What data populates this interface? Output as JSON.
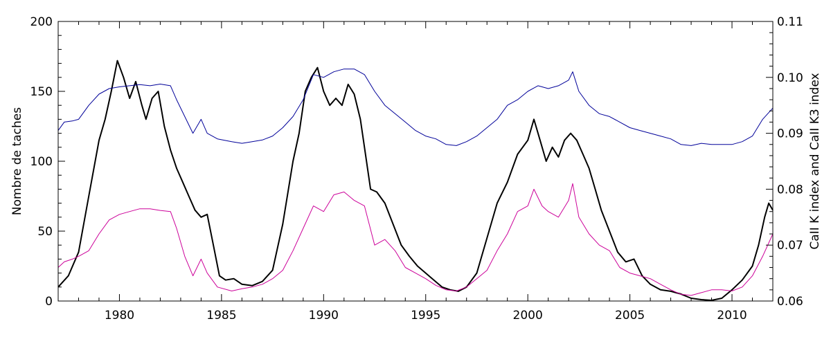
{
  "chart_data": {
    "type": "line",
    "title": "",
    "xlabel": "",
    "ylabel_left": "Nombre de taches",
    "ylabel_right": "CaII K index and CaII K3 index",
    "xlim": [
      1977.0,
      2012.0
    ],
    "ylim_left": [
      0,
      200
    ],
    "ylim_right": [
      0.06,
      0.11
    ],
    "x_ticks": [
      1980,
      1985,
      1990,
      1995,
      2000,
      2005,
      2010
    ],
    "y_left_ticks": [
      0,
      50,
      100,
      150,
      200
    ],
    "y_right_ticks": [
      "0.06",
      "0.07",
      "0.08",
      "0.09",
      "0.10",
      "0.11"
    ],
    "grid": false,
    "legend": "none",
    "series": [
      {
        "axis": "left",
        "color": "#000000",
        "values": [
          [
            1977.0,
            10
          ],
          [
            1977.5,
            18
          ],
          [
            1978.0,
            35
          ],
          [
            1978.5,
            75
          ],
          [
            1979.0,
            115
          ],
          [
            1979.3,
            130
          ],
          [
            1979.6,
            150
          ],
          [
            1979.9,
            172
          ],
          [
            1980.2,
            160
          ],
          [
            1980.5,
            145
          ],
          [
            1980.8,
            157
          ],
          [
            1981.1,
            140
          ],
          [
            1981.3,
            130
          ],
          [
            1981.6,
            145
          ],
          [
            1981.9,
            150
          ],
          [
            1982.2,
            125
          ],
          [
            1982.5,
            108
          ],
          [
            1982.8,
            95
          ],
          [
            1983.1,
            85
          ],
          [
            1983.4,
            75
          ],
          [
            1983.7,
            65
          ],
          [
            1984.0,
            60
          ],
          [
            1984.3,
            62
          ],
          [
            1984.6,
            40
          ],
          [
            1984.9,
            18
          ],
          [
            1985.2,
            15
          ],
          [
            1985.6,
            16
          ],
          [
            1986.0,
            12
          ],
          [
            1986.5,
            11
          ],
          [
            1987.0,
            14
          ],
          [
            1987.5,
            22
          ],
          [
            1988.0,
            55
          ],
          [
            1988.5,
            100
          ],
          [
            1988.8,
            120
          ],
          [
            1989.1,
            150
          ],
          [
            1989.4,
            160
          ],
          [
            1989.7,
            167
          ],
          [
            1990.0,
            150
          ],
          [
            1990.3,
            140
          ],
          [
            1990.6,
            145
          ],
          [
            1990.9,
            140
          ],
          [
            1991.2,
            155
          ],
          [
            1991.5,
            148
          ],
          [
            1991.8,
            130
          ],
          [
            1992.0,
            110
          ],
          [
            1992.3,
            80
          ],
          [
            1992.6,
            78
          ],
          [
            1993.0,
            70
          ],
          [
            1993.4,
            55
          ],
          [
            1993.8,
            40
          ],
          [
            1994.2,
            32
          ],
          [
            1994.6,
            25
          ],
          [
            1995.0,
            20
          ],
          [
            1995.4,
            15
          ],
          [
            1995.8,
            10
          ],
          [
            1996.2,
            8
          ],
          [
            1996.6,
            7
          ],
          [
            1997.0,
            10
          ],
          [
            1997.5,
            20
          ],
          [
            1998.0,
            45
          ],
          [
            1998.5,
            70
          ],
          [
            1999.0,
            85
          ],
          [
            1999.5,
            105
          ],
          [
            2000.0,
            115
          ],
          [
            2000.3,
            130
          ],
          [
            2000.6,
            115
          ],
          [
            2000.9,
            100
          ],
          [
            2001.2,
            110
          ],
          [
            2001.5,
            103
          ],
          [
            2001.8,
            115
          ],
          [
            2002.1,
            120
          ],
          [
            2002.4,
            115
          ],
          [
            2002.7,
            105
          ],
          [
            2003.0,
            95
          ],
          [
            2003.3,
            80
          ],
          [
            2003.6,
            65
          ],
          [
            2004.0,
            50
          ],
          [
            2004.4,
            35
          ],
          [
            2004.8,
            28
          ],
          [
            2005.2,
            30
          ],
          [
            2005.6,
            18
          ],
          [
            2006.0,
            12
          ],
          [
            2006.5,
            8
          ],
          [
            2007.0,
            7
          ],
          [
            2007.5,
            5
          ],
          [
            2008.0,
            2
          ],
          [
            2008.5,
            1
          ],
          [
            2009.0,
            0.5
          ],
          [
            2009.5,
            2
          ],
          [
            2010.0,
            8
          ],
          [
            2010.5,
            15
          ],
          [
            2011.0,
            25
          ],
          [
            2011.3,
            40
          ],
          [
            2011.6,
            60
          ],
          [
            2011.8,
            70
          ],
          [
            2012.0,
            65
          ]
        ]
      },
      {
        "axis": "right",
        "color": "#000099",
        "values": [
          [
            1977.0,
            0.0905
          ],
          [
            1977.3,
            0.092
          ],
          [
            1977.7,
            0.0922
          ],
          [
            1978.0,
            0.0925
          ],
          [
            1978.5,
            0.095
          ],
          [
            1979.0,
            0.097
          ],
          [
            1979.5,
            0.098
          ],
          [
            1980.0,
            0.0983
          ],
          [
            1980.5,
            0.0985
          ],
          [
            1981.0,
            0.0987
          ],
          [
            1981.5,
            0.0985
          ],
          [
            1982.0,
            0.0988
          ],
          [
            1982.5,
            0.0985
          ],
          [
            1982.8,
            0.096
          ],
          [
            1983.2,
            0.093
          ],
          [
            1983.6,
            0.09
          ],
          [
            1984.0,
            0.0925
          ],
          [
            1984.3,
            0.09
          ],
          [
            1984.8,
            0.089
          ],
          [
            1985.5,
            0.0885
          ],
          [
            1986.0,
            0.0882
          ],
          [
            1986.5,
            0.0885
          ],
          [
            1987.0,
            0.0888
          ],
          [
            1987.5,
            0.0895
          ],
          [
            1988.0,
            0.091
          ],
          [
            1988.5,
            0.093
          ],
          [
            1989.0,
            0.096
          ],
          [
            1989.5,
            0.1005
          ],
          [
            1990.0,
            0.1
          ],
          [
            1990.5,
            0.101
          ],
          [
            1991.0,
            0.1015
          ],
          [
            1991.5,
            0.1015
          ],
          [
            1992.0,
            0.1005
          ],
          [
            1992.5,
            0.0975
          ],
          [
            1993.0,
            0.095
          ],
          [
            1993.5,
            0.0935
          ],
          [
            1994.0,
            0.092
          ],
          [
            1994.5,
            0.0905
          ],
          [
            1995.0,
            0.0895
          ],
          [
            1995.5,
            0.089
          ],
          [
            1996.0,
            0.088
          ],
          [
            1996.5,
            0.0878
          ],
          [
            1997.0,
            0.0885
          ],
          [
            1997.5,
            0.0895
          ],
          [
            1998.0,
            0.091
          ],
          [
            1998.5,
            0.0925
          ],
          [
            1999.0,
            0.095
          ],
          [
            1999.5,
            0.096
          ],
          [
            2000.0,
            0.0975
          ],
          [
            2000.5,
            0.0985
          ],
          [
            2001.0,
            0.098
          ],
          [
            2001.5,
            0.0985
          ],
          [
            2002.0,
            0.0995
          ],
          [
            2002.2,
            0.101
          ],
          [
            2002.5,
            0.0975
          ],
          [
            2003.0,
            0.095
          ],
          [
            2003.5,
            0.0935
          ],
          [
            2004.0,
            0.093
          ],
          [
            2004.5,
            0.092
          ],
          [
            2005.0,
            0.091
          ],
          [
            2005.5,
            0.0905
          ],
          [
            2006.0,
            0.09
          ],
          [
            2006.5,
            0.0895
          ],
          [
            2007.0,
            0.089
          ],
          [
            2007.5,
            0.088
          ],
          [
            2008.0,
            0.0878
          ],
          [
            2008.5,
            0.0882
          ],
          [
            2009.0,
            0.088
          ],
          [
            2009.5,
            0.088
          ],
          [
            2010.0,
            0.088
          ],
          [
            2010.5,
            0.0885
          ],
          [
            2011.0,
            0.0895
          ],
          [
            2011.5,
            0.0925
          ],
          [
            2012.0,
            0.0945
          ]
        ]
      },
      {
        "axis": "right",
        "color": "#cc0099",
        "values": [
          [
            1977.0,
            0.066
          ],
          [
            1977.3,
            0.067
          ],
          [
            1977.7,
            0.0675
          ],
          [
            1978.0,
            0.068
          ],
          [
            1978.5,
            0.069
          ],
          [
            1979.0,
            0.072
          ],
          [
            1979.5,
            0.0745
          ],
          [
            1980.0,
            0.0755
          ],
          [
            1980.5,
            0.076
          ],
          [
            1981.0,
            0.0765
          ],
          [
            1981.5,
            0.0765
          ],
          [
            1982.0,
            0.0762
          ],
          [
            1982.5,
            0.076
          ],
          [
            1982.8,
            0.073
          ],
          [
            1983.2,
            0.068
          ],
          [
            1983.6,
            0.0645
          ],
          [
            1984.0,
            0.0675
          ],
          [
            1984.3,
            0.065
          ],
          [
            1984.8,
            0.0625
          ],
          [
            1985.5,
            0.0618
          ],
          [
            1986.0,
            0.0622
          ],
          [
            1986.5,
            0.0625
          ],
          [
            1987.0,
            0.063
          ],
          [
            1987.5,
            0.064
          ],
          [
            1988.0,
            0.0655
          ],
          [
            1988.5,
            0.069
          ],
          [
            1989.0,
            0.073
          ],
          [
            1989.5,
            0.077
          ],
          [
            1990.0,
            0.076
          ],
          [
            1990.5,
            0.079
          ],
          [
            1991.0,
            0.0795
          ],
          [
            1991.5,
            0.078
          ],
          [
            1992.0,
            0.077
          ],
          [
            1992.5,
            0.07
          ],
          [
            1993.0,
            0.071
          ],
          [
            1993.5,
            0.069
          ],
          [
            1994.0,
            0.066
          ],
          [
            1994.5,
            0.065
          ],
          [
            1995.0,
            0.064
          ],
          [
            1995.5,
            0.0628
          ],
          [
            1996.0,
            0.062
          ],
          [
            1996.5,
            0.0618
          ],
          [
            1997.0,
            0.0625
          ],
          [
            1997.5,
            0.064
          ],
          [
            1998.0,
            0.0655
          ],
          [
            1998.5,
            0.069
          ],
          [
            1999.0,
            0.072
          ],
          [
            1999.5,
            0.076
          ],
          [
            2000.0,
            0.077
          ],
          [
            2000.3,
            0.08
          ],
          [
            2000.7,
            0.077
          ],
          [
            2001.0,
            0.076
          ],
          [
            2001.5,
            0.075
          ],
          [
            2002.0,
            0.078
          ],
          [
            2002.2,
            0.081
          ],
          [
            2002.5,
            0.075
          ],
          [
            2003.0,
            0.072
          ],
          [
            2003.5,
            0.07
          ],
          [
            2004.0,
            0.069
          ],
          [
            2004.5,
            0.066
          ],
          [
            2005.0,
            0.065
          ],
          [
            2005.5,
            0.0645
          ],
          [
            2006.0,
            0.064
          ],
          [
            2006.5,
            0.063
          ],
          [
            2007.0,
            0.062
          ],
          [
            2007.5,
            0.0612
          ],
          [
            2008.0,
            0.061
          ],
          [
            2008.5,
            0.0615
          ],
          [
            2009.0,
            0.062
          ],
          [
            2009.5,
            0.062
          ],
          [
            2010.0,
            0.0618
          ],
          [
            2010.5,
            0.0625
          ],
          [
            2011.0,
            0.0645
          ],
          [
            2011.5,
            0.068
          ],
          [
            2012.0,
            0.072
          ]
        ]
      }
    ]
  }
}
